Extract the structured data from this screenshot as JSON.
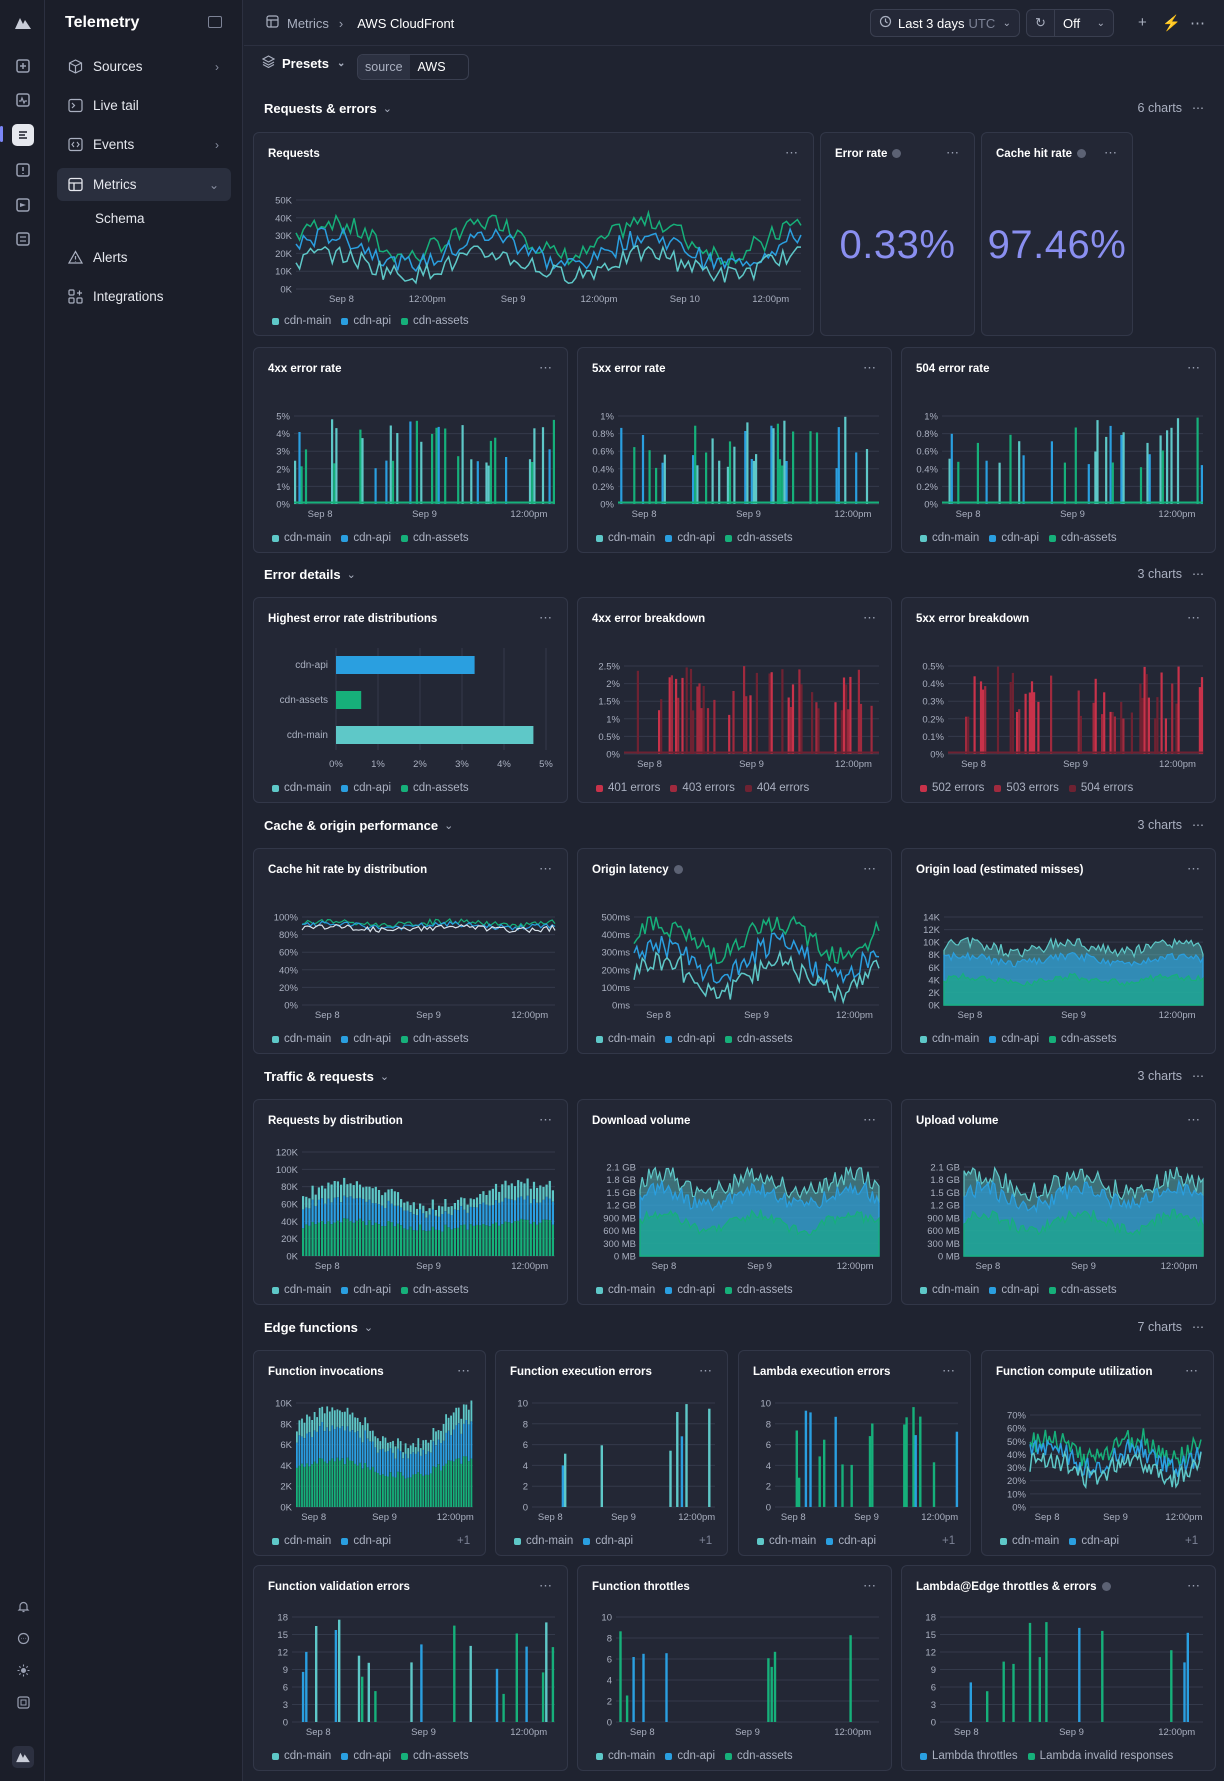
{
  "sidebar": {
    "brand": "Telemetry",
    "items": [
      {
        "label": "Sources",
        "icon": "cube-icon",
        "chevron": "›"
      },
      {
        "label": "Live tail",
        "icon": "terminal-icon",
        "chevron": ""
      },
      {
        "label": "Events",
        "icon": "brackets-icon",
        "chevron": "›"
      },
      {
        "label": "Metrics",
        "icon": "grid-icon",
        "chevron": "⌄"
      },
      {
        "label": "Schema",
        "icon": "",
        "chevron": ""
      },
      {
        "label": "Alerts",
        "icon": "warning-icon",
        "chevron": ""
      },
      {
        "label": "Integrations",
        "icon": "puzzle-icon",
        "chevron": ""
      }
    ]
  },
  "topbar": {
    "crumb_root": "Metrics",
    "crumb_current": "AWS CloudFront",
    "time_range": "Last 3 days",
    "time_zone": "UTC",
    "refresh": "Off"
  },
  "filters": {
    "presets": "Presets",
    "source_key": "source",
    "source_value": "AWS"
  },
  "sections": [
    {
      "title": "Requests & errors",
      "count": "6 charts"
    },
    {
      "title": "Error details",
      "count": "3 charts"
    },
    {
      "title": "Cache & origin performance",
      "count": "3 charts"
    },
    {
      "title": "Traffic & requests",
      "count": "3 charts"
    },
    {
      "title": "Edge functions",
      "count": "7 charts"
    }
  ],
  "colors": {
    "cdn_main": "#5ec8c8",
    "cdn_api": "#2a9fe0",
    "cdn_assets": "#16b07a",
    "err1": "#c8324a",
    "err2": "#a02a3e",
    "err3": "#6e2232",
    "stat": "#8a8ff0"
  },
  "legend_std": [
    "cdn-main",
    "cdn-api",
    "cdn-assets"
  ],
  "legend_two": [
    "cdn-main",
    "cdn-api"
  ],
  "legend_plus": "+1",
  "cards": {
    "requests": {
      "title": "Requests",
      "yticks": [
        "50K",
        "40K",
        "30K",
        "20K",
        "10K",
        "0K"
      ],
      "xticks": [
        "Sep 8",
        "12:00pm",
        "Sep 9",
        "12:00pm",
        "Sep 10",
        "12:00pm"
      ]
    },
    "error_rate": {
      "title": "Error rate",
      "value": "0.33%"
    },
    "cache_hit_rate": {
      "title": "Cache hit rate",
      "value": "97.46%"
    },
    "e4xx": {
      "title": "4xx error rate",
      "yticks": [
        "5%",
        "4%",
        "3%",
        "2%",
        "1%",
        "0%"
      ],
      "xticks": [
        "Sep 8",
        "Sep 9",
        "12:00pm"
      ]
    },
    "e5xx": {
      "title": "5xx error rate",
      "yticks": [
        "1%",
        "0.8%",
        "0.6%",
        "0.4%",
        "0.2%",
        "0%"
      ],
      "xticks": [
        "Sep 8",
        "Sep 9",
        "12:00pm"
      ]
    },
    "e504": {
      "title": "504 error rate",
      "yticks": [
        "1%",
        "0.8%",
        "0.6%",
        "0.4%",
        "0.2%",
        "0%"
      ],
      "xticks": [
        "Sep 8",
        "Sep 9",
        "12:00pm"
      ]
    },
    "highest": {
      "title": "Highest error rate distributions",
      "xticks": [
        "0%",
        "1%",
        "2%",
        "3%",
        "4%",
        "5%"
      ]
    },
    "b4xx": {
      "title": "4xx error breakdown",
      "yticks": [
        "2.5%",
        "2%",
        "1.5%",
        "1%",
        "0.5%",
        "0%"
      ],
      "xticks": [
        "Sep 8",
        "Sep 9",
        "12:00pm"
      ],
      "legend": [
        "401 errors",
        "403 errors",
        "404 errors"
      ]
    },
    "b5xx": {
      "title": "5xx error breakdown",
      "yticks": [
        "0.5%",
        "0.4%",
        "0.3%",
        "0.2%",
        "0.1%",
        "0%"
      ],
      "xticks": [
        "Sep 8",
        "Sep 9",
        "12:00pm"
      ],
      "legend": [
        "502 errors",
        "503 errors",
        "504 errors"
      ]
    },
    "cache_dist": {
      "title": "Cache hit rate by distribution",
      "yticks": [
        "100%",
        "80%",
        "60%",
        "40%",
        "20%",
        "0%"
      ],
      "xticks": [
        "Sep 8",
        "Sep 9",
        "12:00pm"
      ]
    },
    "origin_latency": {
      "title": "Origin latency",
      "yticks": [
        "500ms",
        "400ms",
        "300ms",
        "200ms",
        "100ms",
        "0ms"
      ],
      "xticks": [
        "Sep 8",
        "Sep 9",
        "12:00pm"
      ]
    },
    "origin_load": {
      "title": "Origin load (estimated misses)",
      "yticks": [
        "14K",
        "12K",
        "10K",
        "8K",
        "6K",
        "4K",
        "2K",
        "0K"
      ],
      "xticks": [
        "Sep 8",
        "Sep 9",
        "12:00pm"
      ]
    },
    "req_dist": {
      "title": "Requests by distribution",
      "yticks": [
        "120K",
        "100K",
        "80K",
        "60K",
        "40K",
        "20K",
        "0K"
      ],
      "xticks": [
        "Sep 8",
        "Sep 9",
        "12:00pm"
      ]
    },
    "download": {
      "title": "Download volume",
      "yticks": [
        "2.1 GB",
        "1.8 GB",
        "1.5 GB",
        "1.2 GB",
        "900 MB",
        "600 MB",
        "300 MB",
        "0 MB"
      ],
      "xticks": [
        "Sep 8",
        "Sep 9",
        "12:00pm"
      ]
    },
    "upload": {
      "title": "Upload volume",
      "yticks": [
        "2.1 GB",
        "1.8 GB",
        "1.5 GB",
        "1.2 GB",
        "900 MB",
        "600 MB",
        "300 MB",
        "0 MB"
      ],
      "xticks": [
        "Sep 8",
        "Sep 9",
        "12:00pm"
      ]
    },
    "fn_invocations": {
      "title": "Function invocations",
      "yticks": [
        "10K",
        "8K",
        "6K",
        "4K",
        "2K",
        "0K"
      ],
      "xticks": [
        "Sep 8",
        "Sep 9",
        "12:00pm"
      ]
    },
    "fn_exec_errors": {
      "title": "Function execution errors",
      "yticks": [
        "10",
        "8",
        "6",
        "4",
        "2",
        "0"
      ],
      "xticks": [
        "Sep 8",
        "Sep 9",
        "12:00pm"
      ]
    },
    "lambda_exec_errors": {
      "title": "Lambda execution errors",
      "yticks": [
        "10",
        "8",
        "6",
        "4",
        "2",
        "0"
      ],
      "xticks": [
        "Sep 8",
        "Sep 9",
        "12:00pm"
      ]
    },
    "fn_compute": {
      "title": "Function compute utilization",
      "yticks": [
        "70%",
        "60%",
        "50%",
        "40%",
        "30%",
        "20%",
        "10%",
        "0%"
      ],
      "xticks": [
        "Sep 8",
        "Sep 9",
        "12:00pm"
      ]
    },
    "fn_validation": {
      "title": "Function validation errors",
      "yticks": [
        "18",
        "15",
        "12",
        "9",
        "6",
        "3",
        "0"
      ],
      "xticks": [
        "Sep 8",
        "Sep 9",
        "12:00pm"
      ]
    },
    "fn_throttles": {
      "title": "Function throttles",
      "yticks": [
        "10",
        "8",
        "6",
        "4",
        "2",
        "0"
      ],
      "xticks": [
        "Sep 8",
        "Sep 9",
        "12:00pm"
      ]
    },
    "lambda_edge": {
      "title": "Lambda@Edge throttles & errors",
      "yticks": [
        "18",
        "15",
        "12",
        "9",
        "6",
        "3",
        "0"
      ],
      "xticks": [
        "Sep 8",
        "Sep 9",
        "12:00pm"
      ],
      "legend": [
        "Lambda throttles",
        "Lambda invalid responses"
      ]
    }
  },
  "chart_data": [
    {
      "type": "bar",
      "title": "Highest error rate distributions",
      "orientation": "horizontal",
      "categories": [
        "cdn-api",
        "cdn-assets",
        "cdn-main"
      ],
      "values": [
        3.3,
        0.6,
        4.7
      ],
      "xlim": [
        0,
        5
      ],
      "unit": "%"
    }
  ]
}
